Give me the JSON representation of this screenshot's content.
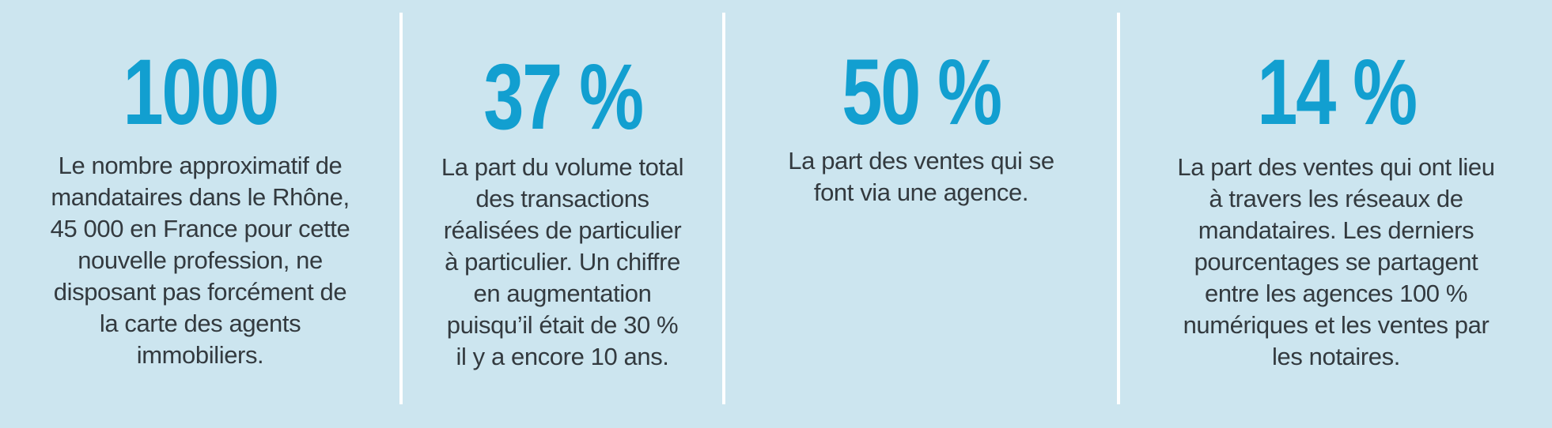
{
  "colors": {
    "background": "#cce5ef",
    "accent": "#129fd0",
    "text": "#333a3f",
    "divider": "#ffffff"
  },
  "stats": [
    {
      "value": "1000",
      "description": "Le nombre approximatif de\nmandataires dans le Rhône,\n45 000 en France pour cette\nnouvelle profession, ne\ndisposant pas forcément de\nla carte des agents\nimmobiliers."
    },
    {
      "value": "37 %",
      "description": "La part du volume total\ndes transactions\nréalisées de particulier\nà particulier. Un chiffre\nen augmentation\npuisqu’il était de 30 %\nil y a encore 10 ans."
    },
    {
      "value": "50 %",
      "description": "La part des ventes qui se\nfont via une agence."
    },
    {
      "value": "14 %",
      "description": "La part des ventes qui ont lieu\nà travers les réseaux de\nmandataires. Les derniers\npourcentages se partagent\nentre les agences 100 %\nnumériques et les ventes par\nles notaires."
    }
  ]
}
